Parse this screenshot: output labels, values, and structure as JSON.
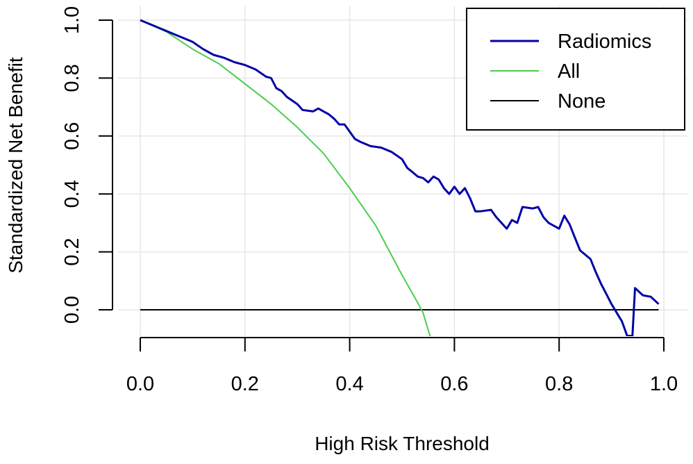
{
  "chart_data": {
    "type": "line",
    "title": "",
    "xlabel": "High Risk Threshold",
    "ylabel": "Standardized Net Benefit",
    "xlim": [
      0,
      1
    ],
    "ylim": [
      -0.1,
      1.0
    ],
    "grid": true,
    "legend_position": "top-right",
    "x_ticks": [
      "0.0",
      "0.2",
      "0.4",
      "0.6",
      "0.8",
      "1.0"
    ],
    "y_ticks": [
      "0.0",
      "0.2",
      "0.4",
      "0.6",
      "0.8",
      "1.0"
    ],
    "series": [
      {
        "name": "Radiomics",
        "color": "#0000a8",
        "points": [
          [
            0.0,
            1.0
          ],
          [
            0.02,
            0.985
          ],
          [
            0.04,
            0.97
          ],
          [
            0.06,
            0.955
          ],
          [
            0.08,
            0.94
          ],
          [
            0.1,
            0.925
          ],
          [
            0.12,
            0.9
          ],
          [
            0.14,
            0.88
          ],
          [
            0.16,
            0.87
          ],
          [
            0.18,
            0.855
          ],
          [
            0.2,
            0.845
          ],
          [
            0.22,
            0.83
          ],
          [
            0.24,
            0.805
          ],
          [
            0.25,
            0.8
          ],
          [
            0.26,
            0.765
          ],
          [
            0.27,
            0.755
          ],
          [
            0.28,
            0.735
          ],
          [
            0.3,
            0.71
          ],
          [
            0.31,
            0.69
          ],
          [
            0.33,
            0.685
          ],
          [
            0.34,
            0.695
          ],
          [
            0.35,
            0.685
          ],
          [
            0.36,
            0.675
          ],
          [
            0.37,
            0.66
          ],
          [
            0.38,
            0.64
          ],
          [
            0.39,
            0.64
          ],
          [
            0.4,
            0.615
          ],
          [
            0.41,
            0.59
          ],
          [
            0.42,
            0.58
          ],
          [
            0.44,
            0.565
          ],
          [
            0.46,
            0.56
          ],
          [
            0.48,
            0.545
          ],
          [
            0.5,
            0.52
          ],
          [
            0.51,
            0.49
          ],
          [
            0.52,
            0.475
          ],
          [
            0.53,
            0.46
          ],
          [
            0.54,
            0.455
          ],
          [
            0.55,
            0.44
          ],
          [
            0.56,
            0.46
          ],
          [
            0.57,
            0.45
          ],
          [
            0.58,
            0.42
          ],
          [
            0.59,
            0.4
          ],
          [
            0.6,
            0.425
          ],
          [
            0.61,
            0.4
          ],
          [
            0.62,
            0.42
          ],
          [
            0.63,
            0.385
          ],
          [
            0.64,
            0.34
          ],
          [
            0.65,
            0.34
          ],
          [
            0.67,
            0.345
          ],
          [
            0.68,
            0.32
          ],
          [
            0.7,
            0.28
          ],
          [
            0.71,
            0.31
          ],
          [
            0.72,
            0.3
          ],
          [
            0.73,
            0.355
          ],
          [
            0.75,
            0.35
          ],
          [
            0.76,
            0.355
          ],
          [
            0.77,
            0.32
          ],
          [
            0.78,
            0.3
          ],
          [
            0.8,
            0.28
          ],
          [
            0.81,
            0.325
          ],
          [
            0.82,
            0.295
          ],
          [
            0.83,
            0.25
          ],
          [
            0.84,
            0.205
          ],
          [
            0.86,
            0.175
          ],
          [
            0.87,
            0.13
          ],
          [
            0.88,
            0.09
          ],
          [
            0.89,
            0.055
          ],
          [
            0.9,
            0.02
          ],
          [
            0.91,
            -0.01
          ],
          [
            0.92,
            -0.04
          ],
          [
            0.93,
            -0.09
          ],
          [
            0.94,
            -0.09
          ],
          [
            0.945,
            0.075
          ],
          [
            0.96,
            0.05
          ],
          [
            0.975,
            0.045
          ],
          [
            0.99,
            0.02
          ]
        ]
      },
      {
        "name": "All",
        "color": "#4ccc4c",
        "points": [
          [
            0.0,
            1.0
          ],
          [
            0.05,
            0.96
          ],
          [
            0.1,
            0.9
          ],
          [
            0.15,
            0.85
          ],
          [
            0.2,
            0.78
          ],
          [
            0.25,
            0.71
          ],
          [
            0.3,
            0.63
          ],
          [
            0.35,
            0.54
          ],
          [
            0.4,
            0.42
          ],
          [
            0.45,
            0.29
          ],
          [
            0.5,
            0.12
          ],
          [
            0.525,
            0.04
          ],
          [
            0.54,
            -0.01
          ],
          [
            0.555,
            -0.1
          ]
        ]
      },
      {
        "name": "None",
        "color": "#000000",
        "points": [
          [
            0.0,
            0.0
          ],
          [
            0.99,
            0.0
          ]
        ]
      }
    ]
  }
}
